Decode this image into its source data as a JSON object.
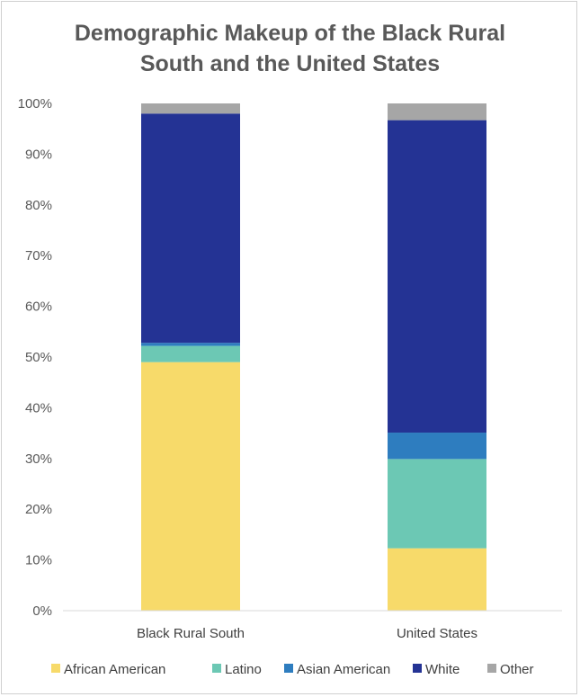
{
  "chart_data": {
    "type": "bar",
    "stacked": true,
    "title": "Demographic Makeup of the Black Rural South and the United States",
    "title_lines": [
      "Demographic Makeup of the Black Rural",
      "South and the United States"
    ],
    "categories": [
      "Black Rural South",
      "United States"
    ],
    "series": [
      {
        "name": "African American",
        "color": "#f7da6a",
        "values": [
          49.0,
          12.3
        ]
      },
      {
        "name": "Latino",
        "color": "#6cc8b4",
        "values": [
          3.2,
          17.6
        ]
      },
      {
        "name": "Asian American",
        "color": "#2e7dbf",
        "values": [
          0.6,
          5.2
        ]
      },
      {
        "name": "White",
        "color": "#243394",
        "values": [
          45.2,
          61.6
        ]
      },
      {
        "name": "Other",
        "color": "#a6a6a6",
        "values": [
          2.0,
          3.3
        ]
      }
    ],
    "ylim": [
      0,
      100
    ],
    "yticks": [
      0,
      10,
      20,
      30,
      40,
      50,
      60,
      70,
      80,
      90,
      100
    ],
    "ytick_labels": [
      "0%",
      "10%",
      "20%",
      "30%",
      "40%",
      "50%",
      "60%",
      "70%",
      "80%",
      "90%",
      "100%"
    ],
    "grid": false,
    "legend": "bottom"
  }
}
